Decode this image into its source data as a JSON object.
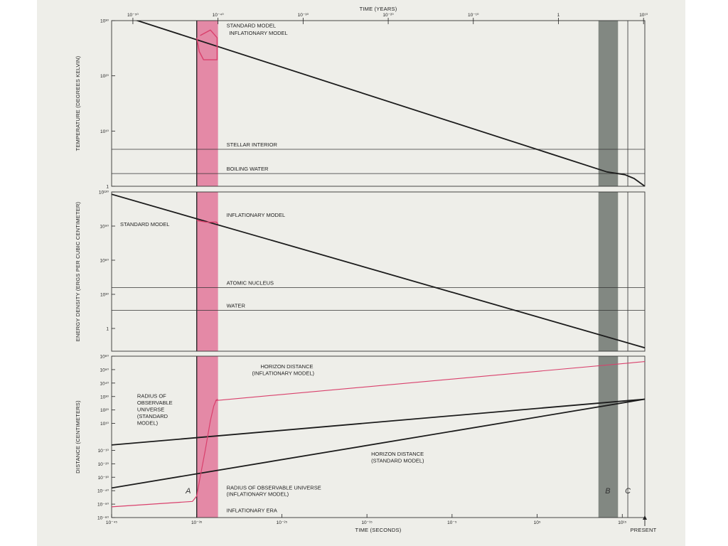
{
  "chart_data": [
    {
      "type": "line",
      "top_axis": {
        "label": "TIME (YEARS)",
        "ticks": [
          "10⁻⁵⁰",
          "10⁻⁴⁰",
          "10⁻³⁰",
          "10⁻²⁰",
          "10⁻¹⁰",
          "1",
          "10¹⁰"
        ],
        "log10_range": [
          -52.5,
          10.15
        ]
      },
      "xlabel": "TIME (SECONDS)",
      "xlim_log10": [
        -45,
        17.65
      ],
      "x_ticks": [
        {
          "log10": -45,
          "label": "10⁻⁴⁵"
        },
        {
          "log10": -35,
          "label": "10⁻³⁵"
        },
        {
          "log10": -25,
          "label": "10⁻²⁵"
        },
        {
          "log10": -15,
          "label": "10⁻¹⁵"
        },
        {
          "log10": -5,
          "label": "10⁻⁵"
        },
        {
          "log10": 5,
          "label": "10⁵"
        },
        {
          "log10": 15,
          "label": "10¹⁵"
        }
      ],
      "present_label": "PRESENT",
      "present_log10": 17.65,
      "bands": [
        {
          "name": "A",
          "from_log10": -35,
          "to_log10": -32.5,
          "color": "#e0678f"
        },
        {
          "name": "B",
          "from_log10": 12.2,
          "to_log10": 14.5,
          "color": "#6f7570"
        }
      ],
      "line_c": {
        "name": "C",
        "log10": 15.65
      },
      "panels": [
        {
          "id": "temperature",
          "ylabel": "TEMPERATURE (DEGREES KELVIN)",
          "ylim_log10": [
            0,
            30
          ],
          "y_ticks": [
            {
              "log10": 30,
              "label": "10³⁰"
            },
            {
              "log10": 20,
              "label": "10²⁰"
            },
            {
              "log10": 10,
              "label": "10¹⁰"
            },
            {
              "log10": 0,
              "label": "1"
            }
          ],
          "reference_lines": [
            {
              "label": "STELLAR INTERIOR",
              "log10": 6.7
            },
            {
              "label": "BOILING WATER",
              "log10": 2.3
            }
          ],
          "series": [
            {
              "name": "STANDARD MODEL",
              "color": "#1c1c1c",
              "width": 1.8,
              "points": [
                [
                  -45,
                  31.5
                ],
                [
                  13.2,
                  2.6
                ],
                [
                  15.3,
                  2.1
                ],
                [
                  16.4,
                  1.4
                ],
                [
                  17.65,
                  0
                ]
              ]
            },
            {
              "name": "INFLATIONARY MODEL",
              "color": "#d9406c",
              "width": 1.4,
              "points": [
                [
                  -35,
                  26.9
                ],
                [
                  -34.7,
                  24.4
                ],
                [
                  -34.2,
                  22.9
                ],
                [
                  -32.6,
                  22.9
                ],
                [
                  -32.6,
                  26.9
                ],
                [
                  -33.4,
                  28.3
                ],
                [
                  -34.6,
                  27.3
                ]
              ]
            }
          ],
          "annotations": [
            {
              "text": "STANDARD MODEL",
              "at": [
                -31.5,
                28.8
              ]
            },
            {
              "text": "INFLATIONARY MODEL",
              "at": [
                -31.2,
                27.4
              ]
            }
          ]
        },
        {
          "id": "energy_density",
          "ylabel": "ENERGY DENSITY (ERGS PER CUBIC CENTIMETER)",
          "ylim_log10": [
            -20,
            120
          ],
          "y_ticks": [
            {
              "log10": 120,
              "label": "10¹²⁰"
            },
            {
              "log10": 90,
              "label": "10⁹⁰"
            },
            {
              "log10": 60,
              "label": "10⁶⁰"
            },
            {
              "log10": 30,
              "label": "10³⁰"
            },
            {
              "log10": 0,
              "label": "1"
            }
          ],
          "reference_lines": [
            {
              "label": "ATOMIC NUCLEUS",
              "log10": 36
            },
            {
              "label": "WATER",
              "log10": 16
            }
          ],
          "series": [
            {
              "name": "STANDARD MODEL",
              "color": "#1c1c1c",
              "width": 1.8,
              "points": [
                [
                  -45,
                  118
                ],
                [
                  17.65,
                  -17
                ]
              ]
            },
            {
              "name": "INFLATIONARY MODEL",
              "color": "#d9406c",
              "width": 1.4,
              "points": [
                [
                  -35,
                  95
                ],
                [
                  -33.9,
                  93.5
                ],
                [
                  -32.7,
                  93.5
                ],
                [
                  -32.5,
                  92
                ]
              ]
            }
          ],
          "annotations": [
            {
              "text": "STANDARD MODEL",
              "at": [
                -44,
                90
              ]
            },
            {
              "text": "INFLATIONARY MODEL",
              "at": [
                -31.5,
                98
              ]
            }
          ]
        },
        {
          "id": "distance",
          "ylabel": "DISTANCE (CENTIMETERS)",
          "ylim_log10": [
            -60,
            60
          ],
          "y_ticks": [
            {
              "log10": 60,
              "label": "10⁶⁰"
            },
            {
              "log10": 50,
              "label": "10⁵⁰"
            },
            {
              "log10": 40,
              "label": "10⁴⁰"
            },
            {
              "log10": 30,
              "label": "10³⁰"
            },
            {
              "log10": 20,
              "label": "10²⁰"
            },
            {
              "log10": 10,
              "label": "10¹⁰"
            },
            {
              "log10": -10,
              "label": "10⁻¹⁰"
            },
            {
              "log10": -20,
              "label": "10⁻²⁰"
            },
            {
              "log10": -30,
              "label": "10⁻³⁰"
            },
            {
              "log10": -40,
              "label": "10⁻⁴⁰"
            },
            {
              "log10": -50,
              "label": "10⁻⁵⁰"
            },
            {
              "log10": -60,
              "label": "10⁻⁶⁰"
            }
          ],
          "series": [
            {
              "name": "RADIUS OF OBSERVABLE UNIVERSE (STANDARD MODEL)",
              "color": "#1c1c1c",
              "width": 1.8,
              "points": [
                [
                  -45,
                  -6
                ],
                [
                  17.65,
                  28
                ]
              ]
            },
            {
              "name": "HORIZON DISTANCE (STANDARD MODEL)",
              "color": "#1c1c1c",
              "width": 1.8,
              "points": [
                [
                  -45,
                  -38
                ],
                [
                  17.65,
                  28
                ]
              ]
            },
            {
              "name": "HORIZON DISTANCE (INFLATIONARY MODEL)",
              "color": "#d9406c",
              "width": 1.1,
              "points": [
                [
                  -32.8,
                  27
                ],
                [
                  17.65,
                  56
                ]
              ]
            },
            {
              "name": "RADIUS OF OBSERVABLE UNIVERSE (INFLATIONARY MODEL)",
              "color": "#d9406c",
              "width": 1.2,
              "points": [
                [
                  -45,
                  -52
                ],
                [
                  -35.5,
                  -48
                ],
                [
                  -35,
                  -44
                ],
                [
                  -34.6,
                  -30
                ],
                [
                  -34,
                  -10
                ],
                [
                  -33.4,
                  12
                ],
                [
                  -33.0,
                  23
                ],
                [
                  -32.7,
                  27.5
                ],
                [
                  -32.5,
                  28
                ]
              ]
            }
          ],
          "annotations": [
            {
              "text": "HORIZON DISTANCE",
              "at": [
                -27.5,
                51
              ]
            },
            {
              "text": "(INFLATIONARY MODEL)",
              "at": [
                -28.5,
                46
              ]
            },
            {
              "text": "RADIUS OF",
              "at": [
                -42,
                29
              ]
            },
            {
              "text": "OBSERVABLE",
              "at": [
                -42,
                24
              ]
            },
            {
              "text": "UNIVERSE",
              "at": [
                -42,
                19
              ]
            },
            {
              "text": "(STANDARD",
              "at": [
                -42,
                14
              ]
            },
            {
              "text": "MODEL)",
              "at": [
                -42,
                9
              ]
            },
            {
              "text": "HORIZON DISTANCE",
              "at": [
                -14.5,
                -14
              ]
            },
            {
              "text": "(STANDARD MODEL)",
              "at": [
                -14.5,
                -19
              ]
            },
            {
              "text": "RADIUS OF OBSERVABLE UNIVERSE",
              "at": [
                -31.5,
                -39
              ]
            },
            {
              "text": "(INFLATIONARY MODEL)",
              "at": [
                -31.5,
                -44
              ]
            },
            {
              "text": "INFLATIONARY ERA",
              "at": [
                -31.5,
                -56
              ]
            }
          ],
          "band_letters": [
            {
              "text": "A",
              "x_log10": -36.0,
              "y_log10": -40
            },
            {
              "text": "B",
              "x_log10": 13.3,
              "y_log10": -40
            },
            {
              "text": "C",
              "x_log10": 15.65,
              "y_log10": -40
            }
          ]
        }
      ]
    }
  ]
}
